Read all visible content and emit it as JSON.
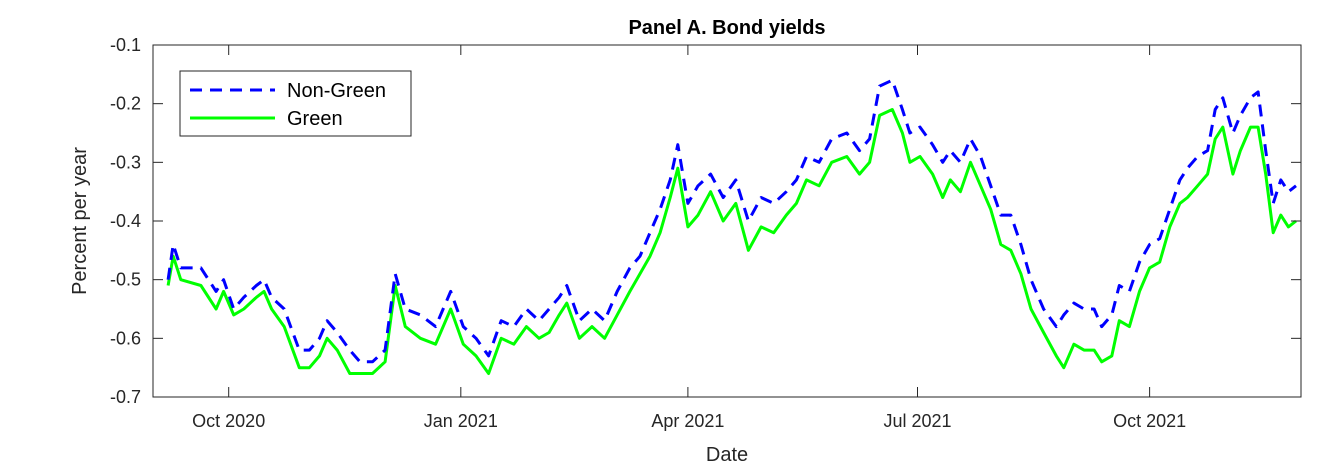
{
  "chart_data": {
    "type": "line",
    "title": "Panel A.  Bond yields",
    "xlabel": "Date",
    "ylabel": "Percent per year",
    "xlim": [
      "2020-09-01",
      "2021-11-30"
    ],
    "ylim": [
      -0.7,
      -0.1
    ],
    "x_ticks": [
      {
        "date": "2020-10-01",
        "label": "Oct 2020"
      },
      {
        "date": "2021-01-01",
        "label": "Jan 2021"
      },
      {
        "date": "2021-04-01",
        "label": "Apr 2021"
      },
      {
        "date": "2021-07-01",
        "label": "Jul 2021"
      },
      {
        "date": "2021-10-01",
        "label": "Oct 2021"
      }
    ],
    "y_ticks": [
      {
        "value": -0.1,
        "label": "-0.1"
      },
      {
        "value": -0.2,
        "label": "-0.2"
      },
      {
        "value": -0.3,
        "label": "-0.3"
      },
      {
        "value": -0.4,
        "label": "-0.4"
      },
      {
        "value": -0.5,
        "label": "-0.5"
      },
      {
        "value": -0.6,
        "label": "-0.6"
      },
      {
        "value": -0.7,
        "label": "-0.7"
      }
    ],
    "grid": false,
    "legend_position": "top-left",
    "series": [
      {
        "name": "Non-Green",
        "color": "#0000ff",
        "dash": "dashed",
        "points": [
          [
            "2020-09-07",
            -0.5
          ],
          [
            "2020-09-09",
            -0.44
          ],
          [
            "2020-09-12",
            -0.48
          ],
          [
            "2020-09-20",
            -0.48
          ],
          [
            "2020-09-26",
            -0.52
          ],
          [
            "2020-09-29",
            -0.5
          ],
          [
            "2020-10-03",
            -0.55
          ],
          [
            "2020-10-07",
            -0.53
          ],
          [
            "2020-10-12",
            -0.51
          ],
          [
            "2020-10-15",
            -0.5
          ],
          [
            "2020-10-18",
            -0.53
          ],
          [
            "2020-10-23",
            -0.55
          ],
          [
            "2020-10-29",
            -0.62
          ],
          [
            "2020-11-02",
            -0.62
          ],
          [
            "2020-11-06",
            -0.6
          ],
          [
            "2020-11-09",
            -0.57
          ],
          [
            "2020-11-13",
            -0.59
          ],
          [
            "2020-11-18",
            -0.62
          ],
          [
            "2020-11-22",
            -0.64
          ],
          [
            "2020-11-27",
            -0.64
          ],
          [
            "2020-12-02",
            -0.62
          ],
          [
            "2020-12-06",
            -0.49
          ],
          [
            "2020-12-10",
            -0.55
          ],
          [
            "2020-12-16",
            -0.56
          ],
          [
            "2020-12-22",
            -0.58
          ],
          [
            "2020-12-28",
            -0.52
          ],
          [
            "2021-01-02",
            -0.58
          ],
          [
            "2021-01-07",
            -0.6
          ],
          [
            "2021-01-12",
            -0.63
          ],
          [
            "2021-01-17",
            -0.57
          ],
          [
            "2021-01-22",
            -0.58
          ],
          [
            "2021-01-27",
            -0.55
          ],
          [
            "2021-02-01",
            -0.57
          ],
          [
            "2021-02-05",
            -0.55
          ],
          [
            "2021-02-09",
            -0.53
          ],
          [
            "2021-02-12",
            -0.51
          ],
          [
            "2021-02-17",
            -0.57
          ],
          [
            "2021-02-22",
            -0.55
          ],
          [
            "2021-02-27",
            -0.57
          ],
          [
            "2021-03-04",
            -0.52
          ],
          [
            "2021-03-09",
            -0.48
          ],
          [
            "2021-03-13",
            -0.46
          ],
          [
            "2021-03-17",
            -0.42
          ],
          [
            "2021-03-21",
            -0.38
          ],
          [
            "2021-03-25",
            -0.33
          ],
          [
            "2021-03-28",
            -0.27
          ],
          [
            "2021-04-01",
            -0.37
          ],
          [
            "2021-04-05",
            -0.34
          ],
          [
            "2021-04-10",
            -0.32
          ],
          [
            "2021-04-15",
            -0.36
          ],
          [
            "2021-04-20",
            -0.33
          ],
          [
            "2021-04-25",
            -0.4
          ],
          [
            "2021-04-30",
            -0.36
          ],
          [
            "2021-05-05",
            -0.37
          ],
          [
            "2021-05-10",
            -0.35
          ],
          [
            "2021-05-14",
            -0.33
          ],
          [
            "2021-05-18",
            -0.29
          ],
          [
            "2021-05-23",
            -0.3
          ],
          [
            "2021-05-28",
            -0.26
          ],
          [
            "2021-06-03",
            -0.25
          ],
          [
            "2021-06-08",
            -0.28
          ],
          [
            "2021-06-12",
            -0.26
          ],
          [
            "2021-06-16",
            -0.17
          ],
          [
            "2021-06-21",
            -0.16
          ],
          [
            "2021-06-25",
            -0.21
          ],
          [
            "2021-06-28",
            -0.25
          ],
          [
            "2021-07-02",
            -0.24
          ],
          [
            "2021-07-07",
            -0.27
          ],
          [
            "2021-07-11",
            -0.3
          ],
          [
            "2021-07-14",
            -0.28
          ],
          [
            "2021-07-18",
            -0.3
          ],
          [
            "2021-07-22",
            -0.26
          ],
          [
            "2021-07-26",
            -0.29
          ],
          [
            "2021-07-30",
            -0.34
          ],
          [
            "2021-08-03",
            -0.39
          ],
          [
            "2021-08-07",
            -0.39
          ],
          [
            "2021-08-11",
            -0.44
          ],
          [
            "2021-08-15",
            -0.5
          ],
          [
            "2021-08-20",
            -0.55
          ],
          [
            "2021-08-25",
            -0.58
          ],
          [
            "2021-08-28",
            -0.56
          ],
          [
            "2021-09-01",
            -0.54
          ],
          [
            "2021-09-05",
            -0.55
          ],
          [
            "2021-09-09",
            -0.55
          ],
          [
            "2021-09-12",
            -0.58
          ],
          [
            "2021-09-16",
            -0.56
          ],
          [
            "2021-09-19",
            -0.51
          ],
          [
            "2021-09-23",
            -0.52
          ],
          [
            "2021-09-27",
            -0.47
          ],
          [
            "2021-10-01",
            -0.44
          ],
          [
            "2021-10-05",
            -0.43
          ],
          [
            "2021-10-09",
            -0.38
          ],
          [
            "2021-10-13",
            -0.33
          ],
          [
            "2021-10-16",
            -0.31
          ],
          [
            "2021-10-20",
            -0.29
          ],
          [
            "2021-10-24",
            -0.28
          ],
          [
            "2021-10-27",
            -0.21
          ],
          [
            "2021-10-30",
            -0.19
          ],
          [
            "2021-11-03",
            -0.25
          ],
          [
            "2021-11-06",
            -0.22
          ],
          [
            "2021-11-10",
            -0.19
          ],
          [
            "2021-11-13",
            -0.18
          ],
          [
            "2021-11-16",
            -0.28
          ],
          [
            "2021-11-19",
            -0.37
          ],
          [
            "2021-11-22",
            -0.33
          ],
          [
            "2021-11-25",
            -0.35
          ],
          [
            "2021-11-28",
            -0.34
          ]
        ]
      },
      {
        "name": "Green",
        "color": "#00ff00",
        "dash": "solid",
        "points": [
          [
            "2020-09-07",
            -0.51
          ],
          [
            "2020-09-09",
            -0.46
          ],
          [
            "2020-09-12",
            -0.5
          ],
          [
            "2020-09-20",
            -0.51
          ],
          [
            "2020-09-26",
            -0.55
          ],
          [
            "2020-09-29",
            -0.52
          ],
          [
            "2020-10-03",
            -0.56
          ],
          [
            "2020-10-07",
            -0.55
          ],
          [
            "2020-10-12",
            -0.53
          ],
          [
            "2020-10-15",
            -0.52
          ],
          [
            "2020-10-18",
            -0.55
          ],
          [
            "2020-10-23",
            -0.58
          ],
          [
            "2020-10-29",
            -0.65
          ],
          [
            "2020-11-02",
            -0.65
          ],
          [
            "2020-11-06",
            -0.63
          ],
          [
            "2020-11-09",
            -0.6
          ],
          [
            "2020-11-13",
            -0.62
          ],
          [
            "2020-11-18",
            -0.66
          ],
          [
            "2020-11-22",
            -0.66
          ],
          [
            "2020-11-27",
            -0.66
          ],
          [
            "2020-12-02",
            -0.64
          ],
          [
            "2020-12-06",
            -0.51
          ],
          [
            "2020-12-10",
            -0.58
          ],
          [
            "2020-12-16",
            -0.6
          ],
          [
            "2020-12-22",
            -0.61
          ],
          [
            "2020-12-28",
            -0.55
          ],
          [
            "2021-01-02",
            -0.61
          ],
          [
            "2021-01-07",
            -0.63
          ],
          [
            "2021-01-12",
            -0.66
          ],
          [
            "2021-01-17",
            -0.6
          ],
          [
            "2021-01-22",
            -0.61
          ],
          [
            "2021-01-27",
            -0.58
          ],
          [
            "2021-02-01",
            -0.6
          ],
          [
            "2021-02-05",
            -0.59
          ],
          [
            "2021-02-09",
            -0.56
          ],
          [
            "2021-02-12",
            -0.54
          ],
          [
            "2021-02-17",
            -0.6
          ],
          [
            "2021-02-22",
            -0.58
          ],
          [
            "2021-02-27",
            -0.6
          ],
          [
            "2021-03-04",
            -0.56
          ],
          [
            "2021-03-09",
            -0.52
          ],
          [
            "2021-03-13",
            -0.49
          ],
          [
            "2021-03-17",
            -0.46
          ],
          [
            "2021-03-21",
            -0.42
          ],
          [
            "2021-03-25",
            -0.36
          ],
          [
            "2021-03-28",
            -0.31
          ],
          [
            "2021-04-01",
            -0.41
          ],
          [
            "2021-04-05",
            -0.39
          ],
          [
            "2021-04-10",
            -0.35
          ],
          [
            "2021-04-15",
            -0.4
          ],
          [
            "2021-04-20",
            -0.37
          ],
          [
            "2021-04-25",
            -0.45
          ],
          [
            "2021-04-30",
            -0.41
          ],
          [
            "2021-05-05",
            -0.42
          ],
          [
            "2021-05-10",
            -0.39
          ],
          [
            "2021-05-14",
            -0.37
          ],
          [
            "2021-05-18",
            -0.33
          ],
          [
            "2021-05-23",
            -0.34
          ],
          [
            "2021-05-28",
            -0.3
          ],
          [
            "2021-06-03",
            -0.29
          ],
          [
            "2021-06-08",
            -0.32
          ],
          [
            "2021-06-12",
            -0.3
          ],
          [
            "2021-06-16",
            -0.22
          ],
          [
            "2021-06-21",
            -0.21
          ],
          [
            "2021-06-25",
            -0.25
          ],
          [
            "2021-06-28",
            -0.3
          ],
          [
            "2021-07-02",
            -0.29
          ],
          [
            "2021-07-07",
            -0.32
          ],
          [
            "2021-07-11",
            -0.36
          ],
          [
            "2021-07-14",
            -0.33
          ],
          [
            "2021-07-18",
            -0.35
          ],
          [
            "2021-07-22",
            -0.3
          ],
          [
            "2021-07-26",
            -0.34
          ],
          [
            "2021-07-30",
            -0.38
          ],
          [
            "2021-08-03",
            -0.44
          ],
          [
            "2021-08-07",
            -0.45
          ],
          [
            "2021-08-11",
            -0.49
          ],
          [
            "2021-08-15",
            -0.55
          ],
          [
            "2021-08-20",
            -0.59
          ],
          [
            "2021-08-25",
            -0.63
          ],
          [
            "2021-08-28",
            -0.65
          ],
          [
            "2021-09-01",
            -0.61
          ],
          [
            "2021-09-05",
            -0.62
          ],
          [
            "2021-09-09",
            -0.62
          ],
          [
            "2021-09-12",
            -0.64
          ],
          [
            "2021-09-16",
            -0.63
          ],
          [
            "2021-09-19",
            -0.57
          ],
          [
            "2021-09-23",
            -0.58
          ],
          [
            "2021-09-27",
            -0.52
          ],
          [
            "2021-10-01",
            -0.48
          ],
          [
            "2021-10-05",
            -0.47
          ],
          [
            "2021-10-09",
            -0.41
          ],
          [
            "2021-10-13",
            -0.37
          ],
          [
            "2021-10-16",
            -0.36
          ],
          [
            "2021-10-20",
            -0.34
          ],
          [
            "2021-10-24",
            -0.32
          ],
          [
            "2021-10-27",
            -0.26
          ],
          [
            "2021-10-30",
            -0.24
          ],
          [
            "2021-11-03",
            -0.32
          ],
          [
            "2021-11-06",
            -0.28
          ],
          [
            "2021-11-10",
            -0.24
          ],
          [
            "2021-11-13",
            -0.24
          ],
          [
            "2021-11-16",
            -0.32
          ],
          [
            "2021-11-19",
            -0.42
          ],
          [
            "2021-11-22",
            -0.39
          ],
          [
            "2021-11-25",
            -0.41
          ],
          [
            "2021-11-28",
            -0.4
          ]
        ]
      }
    ]
  }
}
